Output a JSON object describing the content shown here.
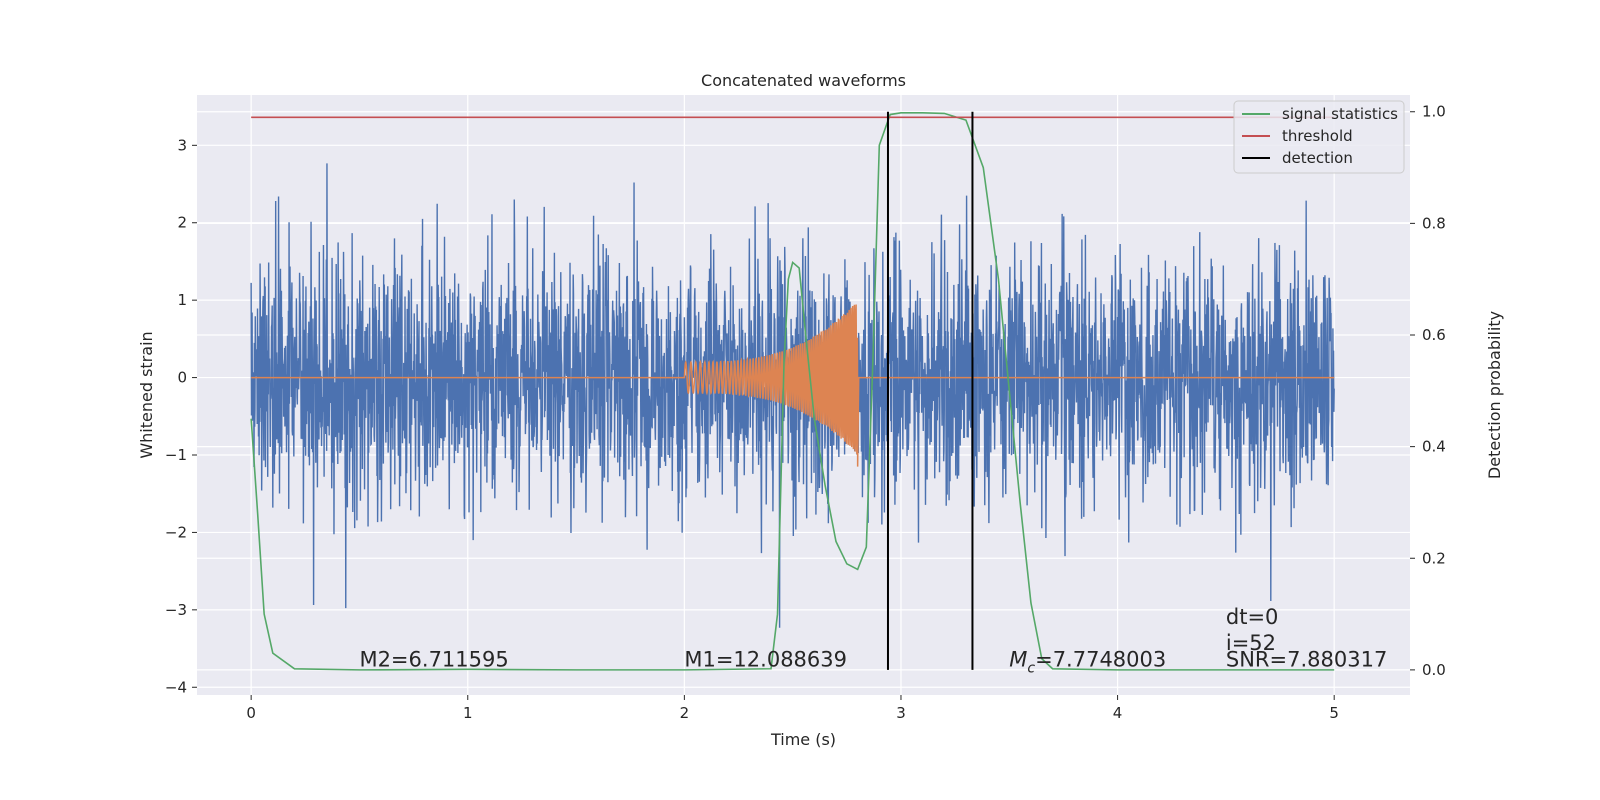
{
  "chart_data": {
    "type": "line",
    "title": "Concatenated waveforms",
    "xlabel": "Time (s)",
    "ylabel": "Whitened strain",
    "ylabel_right": "Detection probability",
    "xlim": [
      -0.25,
      5.35
    ],
    "ylim": [
      -4.1,
      3.65
    ],
    "ylim_right": [
      -0.045,
      1.03
    ],
    "xticks": [
      0,
      1,
      2,
      3,
      4,
      5
    ],
    "yticks": [
      -4,
      -3,
      -2,
      -1,
      0,
      1,
      2,
      3
    ],
    "yticks_right": [
      0.0,
      0.2,
      0.4,
      0.6,
      0.8,
      1.0
    ],
    "xtick_labels": [
      "0",
      "1",
      "2",
      "3",
      "4",
      "5"
    ],
    "ytick_labels": [
      "−4",
      "−3",
      "−2",
      "−1",
      "0",
      "1",
      "2",
      "3"
    ],
    "ytick_labels_right": [
      "0.0",
      "0.2",
      "0.4",
      "0.6",
      "0.8",
      "1.0"
    ],
    "grid": true,
    "background": "#eaeaf2",
    "legend_position": "top-right",
    "series": [
      {
        "name": "whitened strain",
        "axis": "left",
        "color": "#4c72b0",
        "kind": "noise",
        "x_range": [
          0,
          5
        ],
        "envelope_typical": 1.2,
        "envelope_max": 3.3,
        "min_approx": -3.7,
        "max_approx": 3.3
      },
      {
        "name": "injected waveform",
        "axis": "left",
        "color": "#dd8452",
        "kind": "chirp",
        "flat_value": 0,
        "chirp_start": 2.0,
        "chirp_end": 2.8,
        "start_amplitude": 0.2,
        "end_amplitude": 1.0,
        "end_min": -1.15
      },
      {
        "name": "signal statistics",
        "axis": "right",
        "color": "#55a868",
        "x": [
          0,
          0.03,
          0.06,
          0.1,
          0.2,
          0.5,
          1.0,
          1.5,
          2.0,
          2.4,
          2.43,
          2.46,
          2.48,
          2.5,
          2.53,
          2.56,
          2.6,
          2.65,
          2.7,
          2.75,
          2.8,
          2.84,
          2.87,
          2.9,
          2.95,
          3.0,
          3.1,
          3.2,
          3.3,
          3.38,
          3.45,
          3.5,
          3.55,
          3.6,
          3.65,
          3.7,
          4.0,
          4.5,
          5.0
        ],
        "y": [
          0.45,
          0.28,
          0.1,
          0.03,
          0.002,
          0.0,
          0.001,
          0.0,
          0.0,
          0.002,
          0.1,
          0.55,
          0.7,
          0.73,
          0.72,
          0.6,
          0.45,
          0.33,
          0.23,
          0.19,
          0.18,
          0.22,
          0.55,
          0.94,
          0.995,
          0.998,
          0.998,
          0.997,
          0.985,
          0.9,
          0.7,
          0.5,
          0.3,
          0.12,
          0.02,
          0.002,
          0.0,
          0.0,
          0.0
        ]
      },
      {
        "name": "threshold",
        "axis": "right",
        "color": "#c44e52",
        "x": [
          0,
          5
        ],
        "y": [
          0.99,
          0.99
        ]
      },
      {
        "name": "detection",
        "axis": "right",
        "color": "#000000",
        "kind": "vlines",
        "x": [
          2.94,
          3.33
        ],
        "y_range": [
          0.0,
          1.0
        ]
      }
    ],
    "annotations": [
      {
        "id": "m2",
        "text": "M2=6.711595",
        "x": 0.5,
        "y": -3.73
      },
      {
        "id": "m1",
        "text": "M1=12.088639",
        "x": 2.0,
        "y": -3.73
      },
      {
        "id": "mc",
        "text": "=7.7748003",
        "x": 3.5,
        "y": -3.73,
        "symbol": "M",
        "subscript": "c"
      },
      {
        "id": "dt",
        "text": "dt=0",
        "x": 4.5,
        "y": -3.18
      },
      {
        "id": "i",
        "text": "i=52",
        "x": 4.5,
        "y": -3.52
      },
      {
        "id": "snr",
        "text": "SNR=7.880317",
        "x": 4.5,
        "y": -3.73
      }
    ],
    "legend": [
      {
        "label": "signal statistics",
        "color": "#55a868"
      },
      {
        "label": "threshold",
        "color": "#c44e52"
      },
      {
        "label": "detection",
        "color": "#000000"
      }
    ]
  }
}
